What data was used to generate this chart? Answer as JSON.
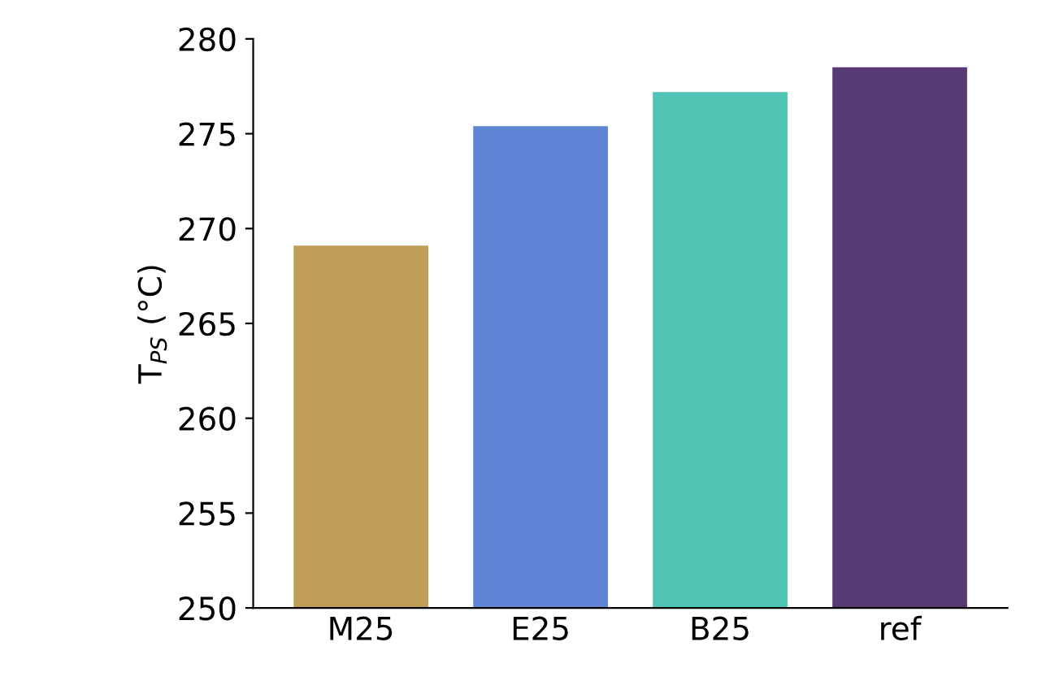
{
  "chart_data": {
    "type": "bar",
    "ylabel": "T$_{PS}$ (°C)",
    "categories": [
      "M25",
      "E25",
      "B25",
      "ref"
    ],
    "values": [
      269.1,
      275.4,
      277.2,
      278.5
    ],
    "colors": [
      "#bf9e5a",
      "#5f83d5",
      "#4fc4b4",
      "#553a74"
    ],
    "ylim": [
      250,
      280
    ],
    "yticks": [
      250,
      255,
      260,
      265,
      270,
      275,
      280
    ],
    "grid": false,
    "legend": false
  }
}
